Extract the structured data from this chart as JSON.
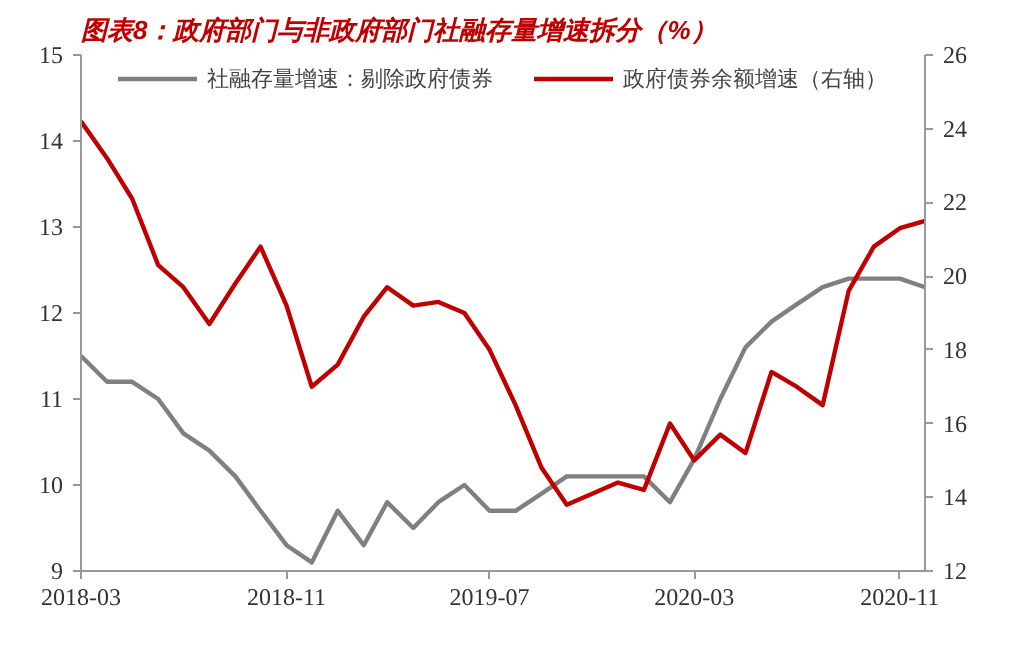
{
  "chart_data": {
    "type": "line",
    "title": "图表8：政府部门与非政府部门社融存量增速拆分（%）",
    "x": [
      "2018-03",
      "2018-04",
      "2018-05",
      "2018-06",
      "2018-07",
      "2018-08",
      "2018-09",
      "2018-10",
      "2018-11",
      "2018-12",
      "2019-01",
      "2019-02",
      "2019-03",
      "2019-04",
      "2019-05",
      "2019-06",
      "2019-07",
      "2019-08",
      "2019-09",
      "2019-10",
      "2019-11",
      "2019-12",
      "2020-01",
      "2020-02",
      "2020-03",
      "2020-04",
      "2020-05",
      "2020-06",
      "2020-07",
      "2020-08",
      "2020-09",
      "2020-10",
      "2020-11",
      "2020-12"
    ],
    "series": [
      {
        "name": "社融存量增速：剔除政府债券",
        "color": "#808080",
        "values": [
          11.5,
          11.2,
          11.2,
          11.0,
          10.6,
          10.4,
          10.1,
          9.7,
          9.3,
          9.1,
          9.7,
          9.3,
          9.8,
          9.5,
          9.8,
          10.0,
          9.7,
          9.7,
          9.9,
          10.1,
          10.1,
          10.1,
          10.1,
          9.8,
          10.3,
          11.0,
          11.6,
          11.9,
          12.1,
          12.3,
          12.4,
          12.4,
          12.4,
          12.3
        ]
      },
      {
        "name": "政府债券余额增速（右轴）",
        "color": "#c00000",
        "axis": "y2",
        "values": [
          24.2,
          23.2,
          22.1,
          20.3,
          19.7,
          18.7,
          19.8,
          20.8,
          19.2,
          17.0,
          17.6,
          18.9,
          19.7,
          19.2,
          19.3,
          19.0,
          18.0,
          16.5,
          14.8,
          13.8,
          14.1,
          14.4,
          14.2,
          16.0,
          15.0,
          15.7,
          15.2,
          17.4,
          17.0,
          16.5,
          19.6,
          20.8,
          21.3,
          21.5
        ]
      }
    ],
    "xlim": [
      "2018-03",
      "2020-12"
    ],
    "xticks": [
      {
        "value": "2018-03",
        "label": "2018-03"
      },
      {
        "value": "2018-11",
        "label": "2018-11"
      },
      {
        "value": "2019-07",
        "label": "2019-07"
      },
      {
        "value": "2020-03",
        "label": "2020-03"
      },
      {
        "value": "2020-11",
        "label": "2020-11"
      }
    ],
    "ylim": [
      9,
      15
    ],
    "yticks": [
      9,
      10,
      11,
      12,
      13,
      14,
      15
    ],
    "y2lim": [
      12,
      26
    ],
    "y2ticks": [
      12,
      14,
      16,
      18,
      20,
      22,
      24,
      26
    ],
    "grid": false,
    "legend": "top",
    "marker": "none",
    "line_style": "solid"
  }
}
